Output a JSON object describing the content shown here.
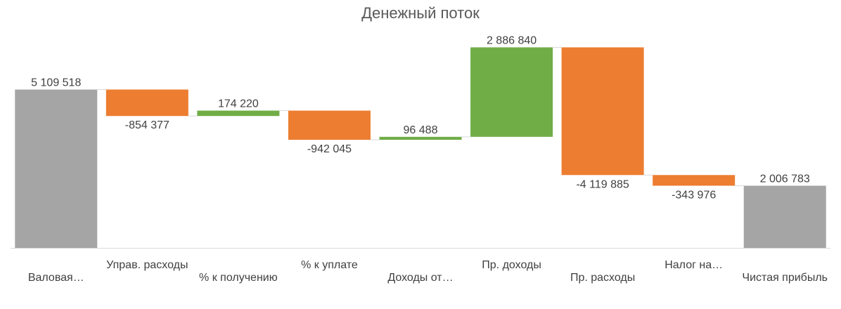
{
  "chart_data": {
    "type": "waterfall",
    "title": "Денежный поток",
    "xlabel": "",
    "ylabel": "",
    "grid": false,
    "legend": "none",
    "categories": [
      "Валовая…",
      "Управ. расходы",
      "% к получению",
      "% к уплате",
      "Доходы от…",
      "Пр. доходы",
      "Пр. расходы",
      "Налог на…",
      "Чистая прибыль"
    ],
    "values": [
      5109518,
      -854377,
      174220,
      -942045,
      96488,
      2886840,
      -4119885,
      -343976,
      2006783
    ],
    "value_labels": [
      "5 109 518",
      "-854 377",
      "174 220",
      "-942 045",
      "96 488",
      "2 886 840",
      "-4 119 885",
      "-343 976",
      "2 006 783"
    ],
    "is_total": [
      true,
      false,
      false,
      false,
      false,
      false,
      false,
      false,
      true
    ],
    "ylim": [
      0,
      8000000
    ],
    "colors": {
      "increase": "#70AD47",
      "decrease": "#ED7D31",
      "total": "#A5A5A5",
      "connector": "#D9D9D9",
      "axis": "#D9D9D9"
    }
  }
}
